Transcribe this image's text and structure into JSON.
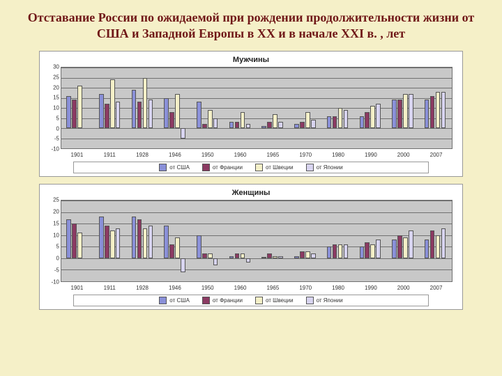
{
  "title": "Отставание России по ожидаемой при рождении продолжительности жизни от США и Западной Европы в XX и в начале XXI в. , лет",
  "colors": {
    "usa": "#8a90d8",
    "france": "#8b3a62",
    "sweden": "#f5f0c8",
    "japan": "#d8d4f0",
    "plot_bg": "#c8c8c8",
    "grid": "#707070"
  },
  "legend": {
    "usa": "от США",
    "france": "от Франции",
    "sweden": "от Швеции",
    "japan": "от Японии"
  },
  "categories": [
    "1901",
    "1911",
    "1928",
    "1946",
    "1950",
    "1960",
    "1965",
    "1970",
    "1980",
    "1990",
    "2000",
    "2007"
  ],
  "charts": [
    {
      "title": "Мужчины",
      "ymin": -10,
      "ymax": 30,
      "ystep": 5,
      "series": [
        {
          "key": "usa",
          "values": [
            16,
            17,
            19,
            15,
            13,
            3,
            1,
            2,
            6,
            6,
            14,
            14
          ]
        },
        {
          "key": "france",
          "values": [
            14,
            12,
            13,
            8,
            2,
            3,
            3,
            3,
            6,
            8,
            14,
            16
          ]
        },
        {
          "key": "sweden",
          "values": [
            21,
            24,
            25,
            17,
            9,
            8,
            7,
            8,
            10,
            11,
            17,
            18
          ]
        },
        {
          "key": "japan",
          "values": [
            null,
            13,
            14,
            -5,
            5,
            2,
            3,
            4,
            9,
            12,
            17,
            18
          ]
        }
      ]
    },
    {
      "title": "Женщины",
      "ymin": -10,
      "ymax": 25,
      "ystep": 5,
      "series": [
        {
          "key": "usa",
          "values": [
            17,
            18,
            18,
            14,
            10,
            1,
            0,
            1,
            5,
            5,
            8,
            8
          ]
        },
        {
          "key": "france",
          "values": [
            15,
            14,
            17,
            6,
            2,
            2,
            2,
            3,
            6,
            7,
            10,
            12
          ]
        },
        {
          "key": "sweden",
          "values": [
            11,
            12,
            13,
            9,
            2,
            2,
            1,
            3,
            6,
            6,
            9,
            10
          ]
        },
        {
          "key": "japan",
          "values": [
            null,
            13,
            14,
            -6,
            -3,
            -2,
            1,
            2,
            6,
            8,
            12,
            13
          ]
        }
      ]
    }
  ]
}
